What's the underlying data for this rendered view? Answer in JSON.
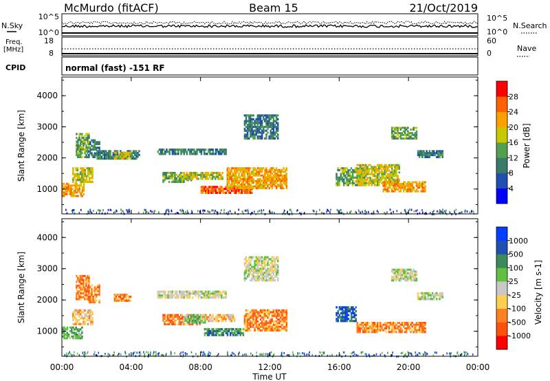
{
  "header": {
    "station": "McMurdo (fitACF)",
    "beam": "Beam 15",
    "date": "21/Oct/2019"
  },
  "noise_panel": {
    "left_label": "N.Sky",
    "right_label": "N.Search",
    "left_ticks": [
      "10^5",
      "10^0"
    ],
    "right_ticks": [
      "10^5",
      "10^0"
    ]
  },
  "freq_panel": {
    "left_label_line1": "Freq.",
    "left_label_line2": "[MHz]",
    "left_ticks": [
      "18",
      "8"
    ],
    "right_label": "Nave",
    "right_ticks": [
      "60",
      "0"
    ]
  },
  "cpid_panel": {
    "label": "CPID",
    "mode_text": "normal (fast) -151 RF"
  },
  "colors": {
    "power": [
      "#0000ff",
      "#1f4fb0",
      "#3a7a6a",
      "#50a050",
      "#c8c800",
      "#ffa000",
      "#ff6000",
      "#ff0000"
    ],
    "velocity": [
      "#0040ff",
      "#1f4fb0",
      "#3a8a5a",
      "#60c040",
      "#c8c8c8",
      "#ffd050",
      "#ff8020",
      "#ff5010",
      "#ff0000"
    ]
  },
  "power_panel": {
    "ylabel": "Slant Range [km]",
    "yticks": [
      "4000",
      "3000",
      "2000",
      "1000"
    ],
    "colorbar_label": "Power [dB]",
    "colorbar_ticks": [
      "28",
      "24",
      "20",
      "16",
      "12",
      "8",
      "4"
    ]
  },
  "velocity_panel": {
    "ylabel": "Slant Range [km]",
    "yticks": [
      "4000",
      "3000",
      "2000",
      "1000"
    ],
    "colorbar_label": "Velocity [m s-1]",
    "colorbar_ticks": [
      "1000",
      "500",
      "100",
      "25",
      "-25",
      "-100",
      "-500",
      "-1000"
    ]
  },
  "xaxis": {
    "ticks": [
      "00:00",
      "04:00",
      "08:00",
      "12:00",
      "16:00",
      "20:00",
      "00:00"
    ],
    "label": "Time UT"
  },
  "chart_data": [
    {
      "type": "heatmap",
      "title": "Power",
      "xlabel": "Time UT",
      "ylabel": "Slant Range [km]",
      "xlim": [
        0,
        24
      ],
      "ylim": [
        200,
        4600
      ],
      "colorbar": "Power [dB]",
      "colorbar_range": [
        0,
        30
      ],
      "patches": [
        {
          "t0": 0.0,
          "t1": 1.3,
          "r0": 750,
          "r1": 1200,
          "level": 5
        },
        {
          "t0": 0.6,
          "t1": 1.8,
          "r0": 1200,
          "r1": 1700,
          "level": 4
        },
        {
          "t0": 0.8,
          "t1": 1.6,
          "r0": 2000,
          "r1": 2800,
          "level": 3
        },
        {
          "t0": 1.5,
          "t1": 2.2,
          "r0": 2000,
          "r1": 2600,
          "level": 2
        },
        {
          "t0": 2.0,
          "t1": 4.5,
          "r0": 1950,
          "r1": 2250,
          "level": 2
        },
        {
          "t0": 3.0,
          "t1": 4.0,
          "r0": 1950,
          "r1": 2200,
          "level": 4
        },
        {
          "t0": 5.5,
          "t1": 9.5,
          "r0": 2100,
          "r1": 2300,
          "level": 2
        },
        {
          "t0": 5.8,
          "t1": 7.5,
          "r0": 1200,
          "r1": 1550,
          "level": 3
        },
        {
          "t0": 7.0,
          "t1": 9.3,
          "r0": 1300,
          "r1": 1550,
          "level": 4
        },
        {
          "t0": 8.0,
          "t1": 11.0,
          "r0": 850,
          "r1": 1100,
          "level": 6
        },
        {
          "t0": 9.5,
          "t1": 13.0,
          "r0": 1000,
          "r1": 1700,
          "level": 5
        },
        {
          "t0": 10.5,
          "t1": 12.5,
          "r0": 2600,
          "r1": 3400,
          "level": 2
        },
        {
          "t0": 15.8,
          "t1": 17.5,
          "r0": 1100,
          "r1": 1700,
          "level": 3
        },
        {
          "t0": 17.0,
          "t1": 19.5,
          "r0": 1100,
          "r1": 1800,
          "level": 4
        },
        {
          "t0": 18.5,
          "t1": 21.0,
          "r0": 900,
          "r1": 1250,
          "level": 5
        },
        {
          "t0": 19.0,
          "t1": 20.5,
          "r0": 2600,
          "r1": 3000,
          "level": 3
        },
        {
          "t0": 20.5,
          "t1": 22.0,
          "r0": 2000,
          "r1": 2250,
          "level": 2
        }
      ]
    },
    {
      "type": "heatmap",
      "title": "Velocity",
      "xlabel": "Time UT",
      "ylabel": "Slant Range [km]",
      "xlim": [
        0,
        24
      ],
      "ylim": [
        200,
        4600
      ],
      "colorbar": "Velocity [m s-1]",
      "colorbar_range": [
        -1000,
        1000
      ],
      "patches": [
        {
          "t0": 0.0,
          "t1": 1.2,
          "r0": 750,
          "r1": 1150,
          "level": 3
        },
        {
          "t0": 0.6,
          "t1": 1.8,
          "r0": 1200,
          "r1": 1700,
          "level": 5
        },
        {
          "t0": 0.8,
          "t1": 1.6,
          "r0": 2000,
          "r1": 2800,
          "level": 6
        },
        {
          "t0": 1.5,
          "t1": 2.2,
          "r0": 1900,
          "r1": 2500,
          "level": 6
        },
        {
          "t0": 3.0,
          "t1": 4.0,
          "r0": 1950,
          "r1": 2200,
          "level": 6
        },
        {
          "t0": 5.5,
          "t1": 9.5,
          "r0": 2050,
          "r1": 2300,
          "level": 4
        },
        {
          "t0": 5.8,
          "t1": 8.0,
          "r0": 1200,
          "r1": 1550,
          "level": 6
        },
        {
          "t0": 7.0,
          "t1": 8.3,
          "r0": 1250,
          "r1": 1550,
          "level": 3
        },
        {
          "t0": 8.2,
          "t1": 10.5,
          "r0": 850,
          "r1": 1100,
          "level": 2
        },
        {
          "t0": 8.0,
          "t1": 10.0,
          "r0": 1300,
          "r1": 1550,
          "level": 5
        },
        {
          "t0": 10.5,
          "t1": 13.0,
          "r0": 1000,
          "r1": 1700,
          "level": 6
        },
        {
          "t0": 10.5,
          "t1": 12.5,
          "r0": 2600,
          "r1": 3400,
          "level": 4
        },
        {
          "t0": 15.8,
          "t1": 17.0,
          "r0": 1300,
          "r1": 1800,
          "level": 1
        },
        {
          "t0": 17.0,
          "t1": 21.0,
          "r0": 950,
          "r1": 1300,
          "level": 6
        },
        {
          "t0": 19.0,
          "t1": 20.5,
          "r0": 2600,
          "r1": 3000,
          "level": 4
        },
        {
          "t0": 20.5,
          "t1": 22.0,
          "r0": 2000,
          "r1": 2250,
          "level": 4
        }
      ]
    }
  ]
}
